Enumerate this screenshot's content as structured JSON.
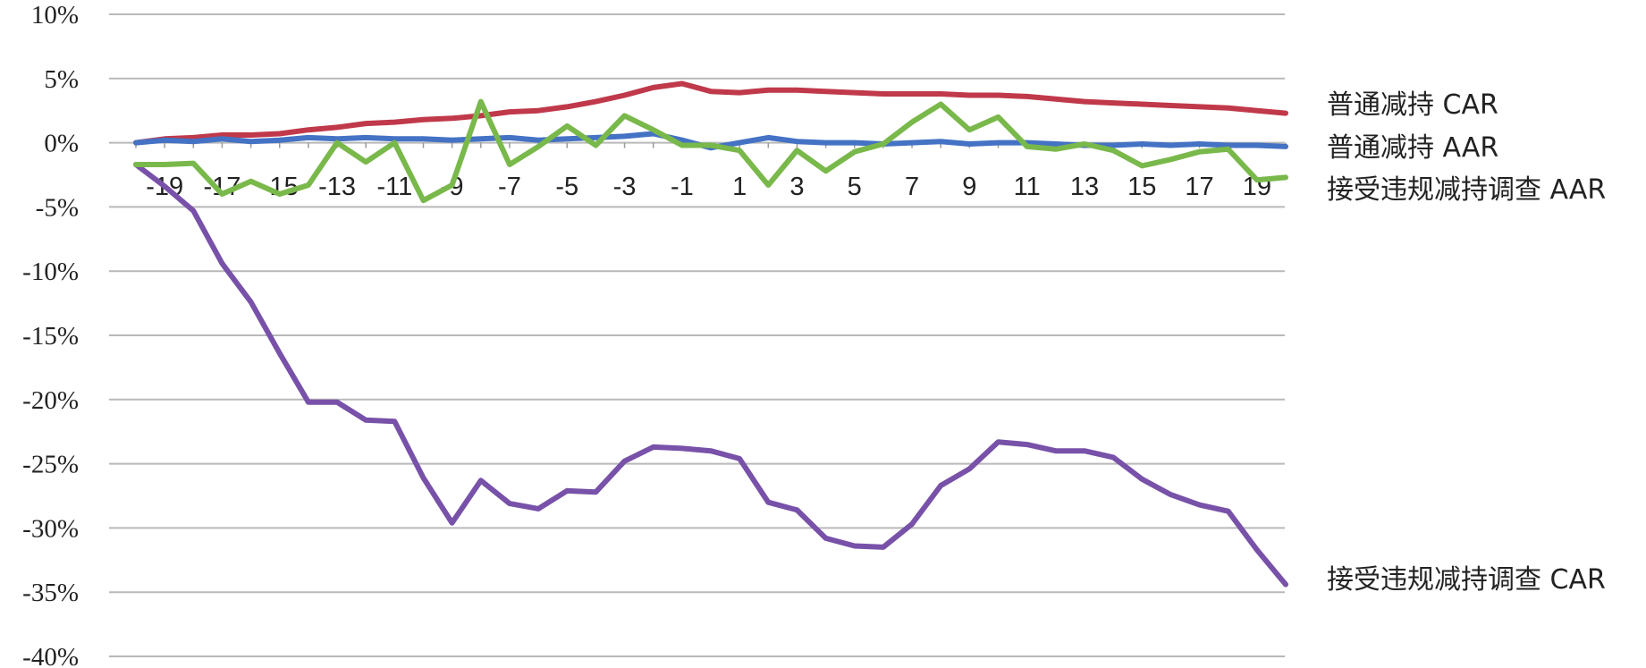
{
  "chart_data": {
    "type": "line",
    "title": "",
    "xlabel": "",
    "ylabel": "",
    "ylim": [
      -40,
      10
    ],
    "ystep": 5,
    "y_tick_suffix": "%",
    "xlim": [
      -20,
      20
    ],
    "x_tick_labels": [
      "-19",
      "-17",
      "-15",
      "-13",
      "-11",
      "-9",
      "-7",
      "-5",
      "-3",
      "-1",
      "1",
      "3",
      "5",
      "7",
      "9",
      "11",
      "13",
      "15",
      "17",
      "19"
    ],
    "grid": true,
    "legend": "labels at line ends (right side)",
    "x": [
      -20,
      -19,
      -18,
      -17,
      -16,
      -15,
      -14,
      -13,
      -12,
      -11,
      -10,
      -9,
      -8,
      -7,
      -6,
      -5,
      -4,
      -3,
      -2,
      -1,
      0,
      1,
      2,
      3,
      4,
      5,
      6,
      7,
      8,
      9,
      10,
      11,
      12,
      13,
      14,
      15,
      16,
      17,
      18,
      19,
      20
    ],
    "series": [
      {
        "name": "普通减持 CAR",
        "color": "#c0394a",
        "values": [
          0.0,
          0.3,
          0.4,
          0.6,
          0.6,
          0.7,
          1.0,
          1.2,
          1.5,
          1.6,
          1.8,
          1.9,
          2.1,
          2.4,
          2.5,
          2.8,
          3.2,
          3.7,
          4.3,
          4.6,
          4.0,
          3.9,
          4.1,
          4.1,
          4.0,
          3.9,
          3.8,
          3.8,
          3.8,
          3.7,
          3.7,
          3.6,
          3.4,
          3.2,
          3.1,
          3.0,
          2.9,
          2.8,
          2.7,
          2.5,
          2.3
        ]
      },
      {
        "name": "普通减持 AAR",
        "color": "#4472c4",
        "values": [
          0.0,
          0.2,
          0.1,
          0.3,
          0.1,
          0.2,
          0.4,
          0.3,
          0.4,
          0.3,
          0.3,
          0.2,
          0.3,
          0.4,
          0.2,
          0.3,
          0.4,
          0.5,
          0.7,
          0.2,
          -0.4,
          0.0,
          0.4,
          0.1,
          0.0,
          0.0,
          -0.1,
          0.0,
          0.1,
          -0.1,
          0.0,
          0.0,
          -0.1,
          -0.2,
          -0.2,
          -0.1,
          -0.2,
          -0.1,
          -0.2,
          -0.2,
          -0.3
        ]
      },
      {
        "name": "接受违规减持调查 AAR",
        "color": "#79b84a",
        "values": [
          -1.7,
          -1.7,
          -1.6,
          -4.0,
          -3.0,
          -4.0,
          -3.3,
          0.0,
          -1.5,
          0.0,
          -4.5,
          -3.3,
          3.2,
          -1.7,
          -0.3,
          1.3,
          -0.2,
          2.1,
          1.0,
          -0.2,
          -0.2,
          -0.6,
          -3.3,
          -0.6,
          -2.2,
          -0.7,
          -0.1,
          1.6,
          3.0,
          1.0,
          2.0,
          -0.3,
          -0.5,
          -0.1,
          -0.6,
          -1.8,
          -1.3,
          -0.7,
          -0.5,
          -2.9,
          -2.7
        ]
      },
      {
        "name": "接受违规减持调查 CAR",
        "color": "#7851a9",
        "values": [
          -1.7,
          -3.4,
          -5.3,
          -9.4,
          -12.4,
          -16.4,
          -20.2,
          -20.2,
          -21.6,
          -21.7,
          -26.1,
          -29.6,
          -26.3,
          -28.1,
          -28.5,
          -27.1,
          -27.2,
          -24.8,
          -23.7,
          -23.8,
          -24.0,
          -24.6,
          -28.0,
          -28.6,
          -30.8,
          -31.4,
          -31.5,
          -29.7,
          -26.7,
          -25.4,
          -23.3,
          -23.5,
          -24.0,
          -24.0,
          -24.5,
          -26.2,
          -27.4,
          -28.2,
          -28.7,
          -31.7,
          -34.4
        ]
      }
    ]
  }
}
